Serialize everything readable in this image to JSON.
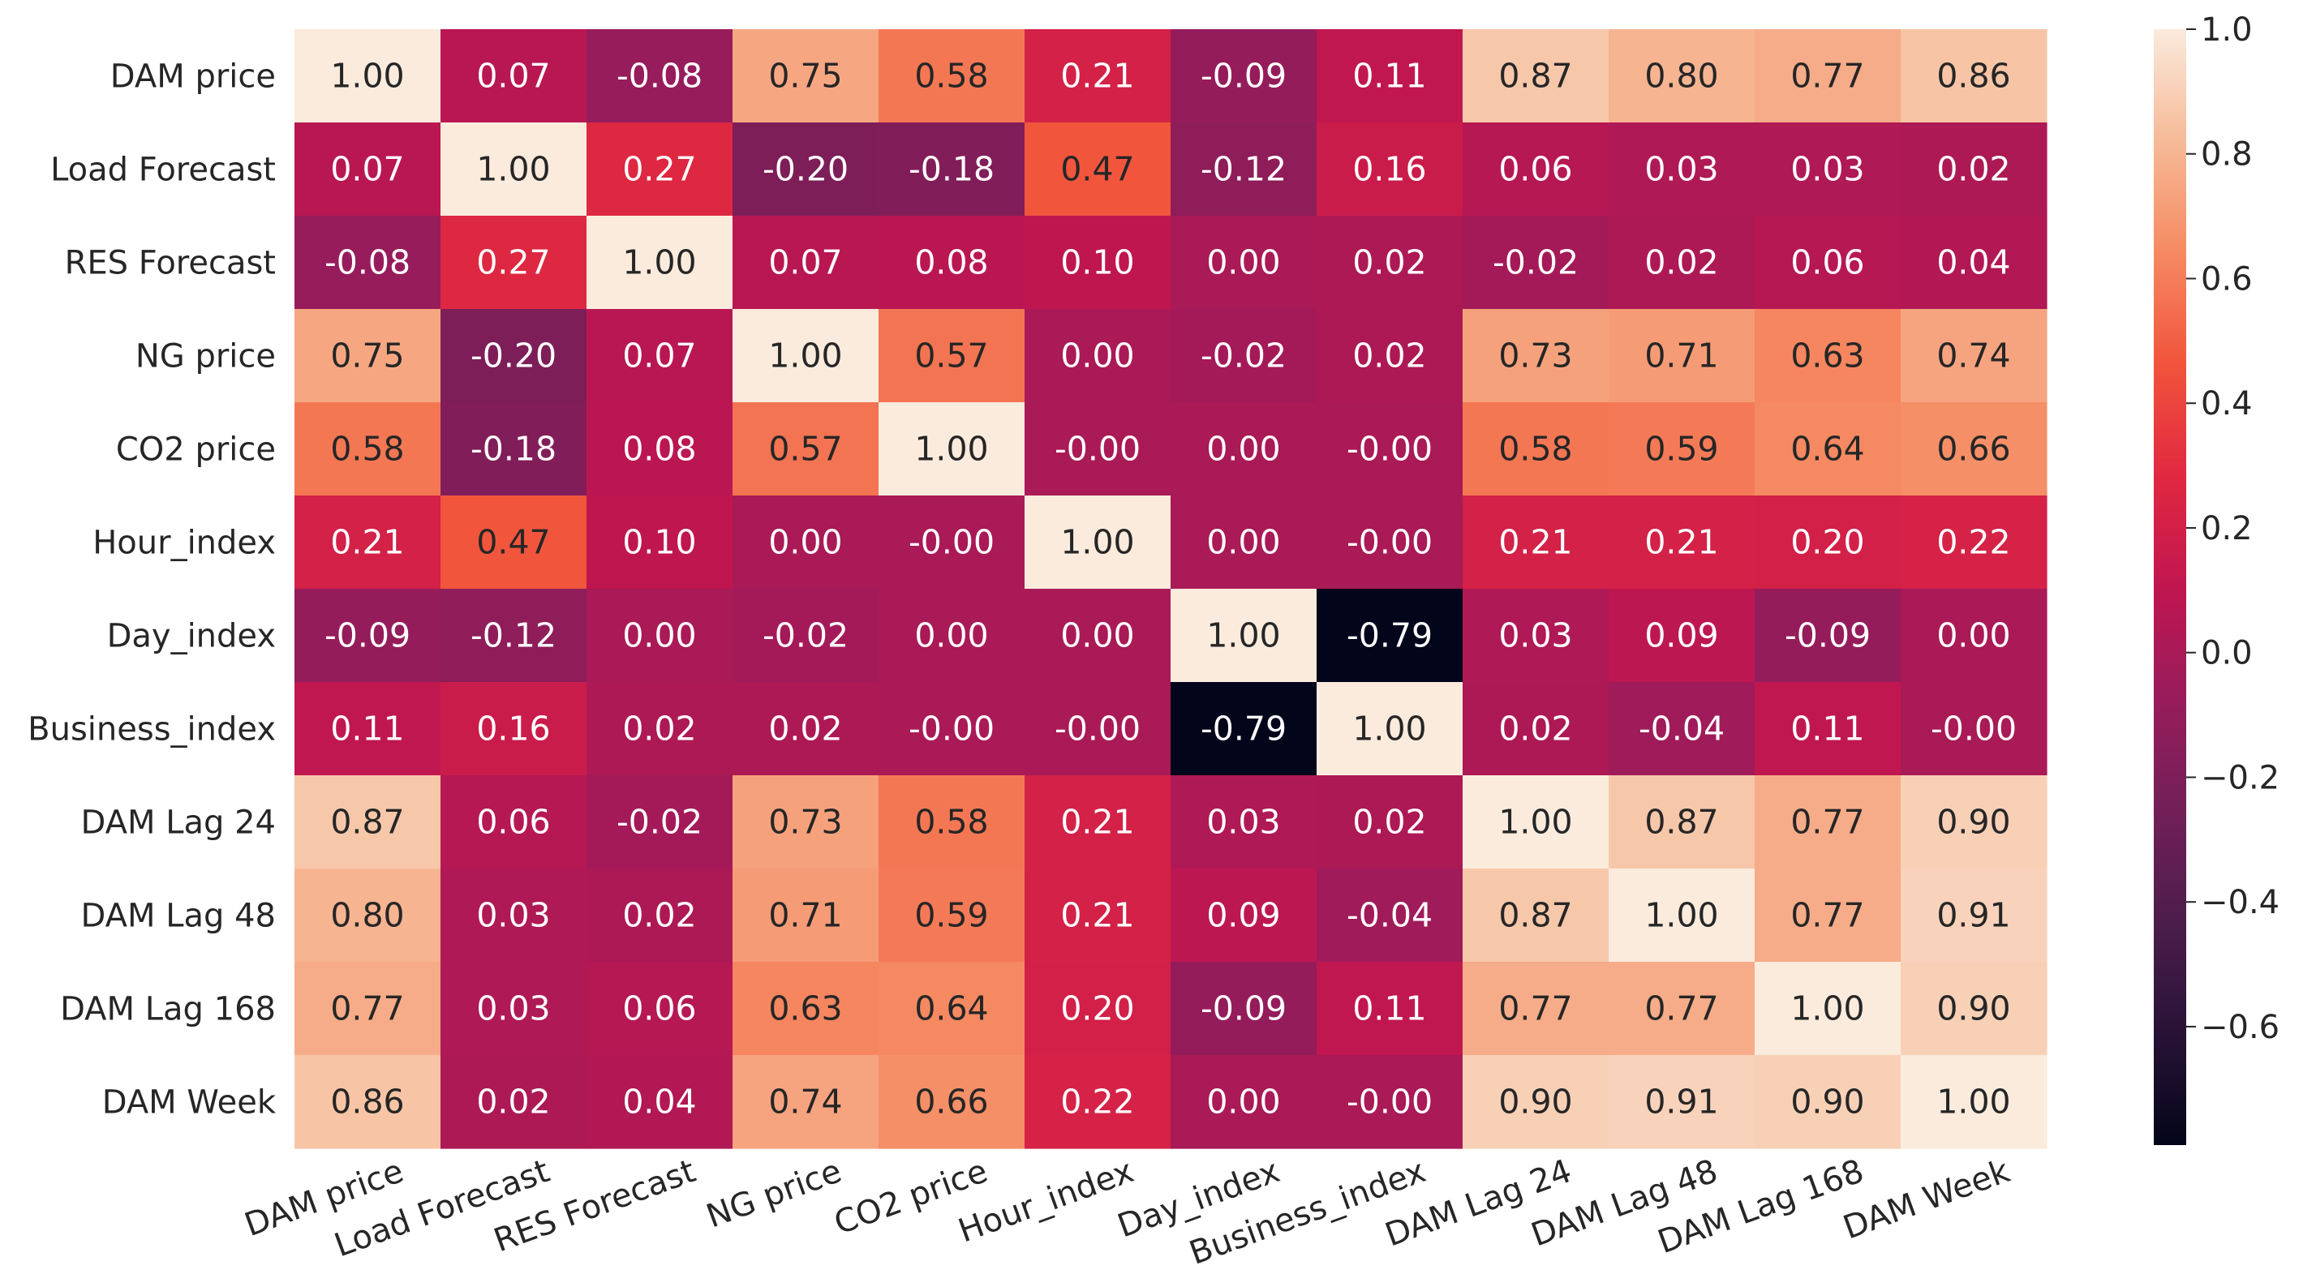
{
  "chart_data": {
    "type": "heatmap",
    "title": "",
    "xlabel": "",
    "ylabel": "",
    "colormap": "rocket",
    "vmin": -0.79,
    "vmax": 1.0,
    "x_categories": [
      "DAM price",
      "Load Forecast",
      "RES Forecast",
      "NG price",
      "CO2 price",
      "Hour_index",
      "Day_index",
      "Business_index",
      "DAM Lag 24",
      "DAM Lag 48",
      "DAM Lag 168",
      "DAM Week"
    ],
    "y_categories": [
      "DAM price",
      "Load Forecast",
      "RES Forecast",
      "NG price",
      "CO2 price",
      "Hour_index",
      "Day_index",
      "Business_index",
      "DAM Lag 24",
      "DAM Lag 48",
      "DAM Lag 168",
      "DAM Week"
    ],
    "cell_labels": [
      [
        "1.00",
        "0.07",
        "-0.08",
        "0.75",
        "0.58",
        "0.21",
        "-0.09",
        "0.11",
        "0.87",
        "0.80",
        "0.77",
        "0.86"
      ],
      [
        "0.07",
        "1.00",
        "0.27",
        "-0.20",
        "-0.18",
        "0.47",
        "-0.12",
        "0.16",
        "0.06",
        "0.03",
        "0.03",
        "0.02"
      ],
      [
        "-0.08",
        "0.27",
        "1.00",
        "0.07",
        "0.08",
        "0.10",
        "0.00",
        "0.02",
        "-0.02",
        "0.02",
        "0.06",
        "0.04"
      ],
      [
        "0.75",
        "-0.20",
        "0.07",
        "1.00",
        "0.57",
        "0.00",
        "-0.02",
        "0.02",
        "0.73",
        "0.71",
        "0.63",
        "0.74"
      ],
      [
        "0.58",
        "-0.18",
        "0.08",
        "0.57",
        "1.00",
        "-0.00",
        "0.00",
        "-0.00",
        "0.58",
        "0.59",
        "0.64",
        "0.66"
      ],
      [
        "0.21",
        "0.47",
        "0.10",
        "0.00",
        "-0.00",
        "1.00",
        "0.00",
        "-0.00",
        "0.21",
        "0.21",
        "0.20",
        "0.22"
      ],
      [
        "-0.09",
        "-0.12",
        "0.00",
        "-0.02",
        "0.00",
        "0.00",
        "1.00",
        "-0.79",
        "0.03",
        "0.09",
        "-0.09",
        "0.00"
      ],
      [
        "0.11",
        "0.16",
        "0.02",
        "0.02",
        "-0.00",
        "-0.00",
        "-0.79",
        "1.00",
        "0.02",
        "-0.04",
        "0.11",
        "-0.00"
      ],
      [
        "0.87",
        "0.06",
        "-0.02",
        "0.73",
        "0.58",
        "0.21",
        "0.03",
        "0.02",
        "1.00",
        "0.87",
        "0.77",
        "0.90"
      ],
      [
        "0.80",
        "0.03",
        "0.02",
        "0.71",
        "0.59",
        "0.21",
        "0.09",
        "-0.04",
        "0.87",
        "1.00",
        "0.77",
        "0.91"
      ],
      [
        "0.77",
        "0.03",
        "0.06",
        "0.63",
        "0.64",
        "0.20",
        "-0.09",
        "0.11",
        "0.77",
        "0.77",
        "1.00",
        "0.90"
      ],
      [
        "0.86",
        "0.02",
        "0.04",
        "0.74",
        "0.66",
        "0.22",
        "0.00",
        "-0.00",
        "0.90",
        "0.91",
        "0.90",
        "1.00"
      ]
    ],
    "colorbar": {
      "ticks": [
        1.0,
        0.8,
        0.6,
        0.4,
        0.2,
        0.0,
        -0.2,
        -0.4,
        -0.6
      ],
      "tick_labels": [
        "1.0",
        "0.8",
        "0.6",
        "0.4",
        "0.2",
        "0.0",
        "−0.2",
        "−0.4",
        "−0.6"
      ]
    }
  }
}
